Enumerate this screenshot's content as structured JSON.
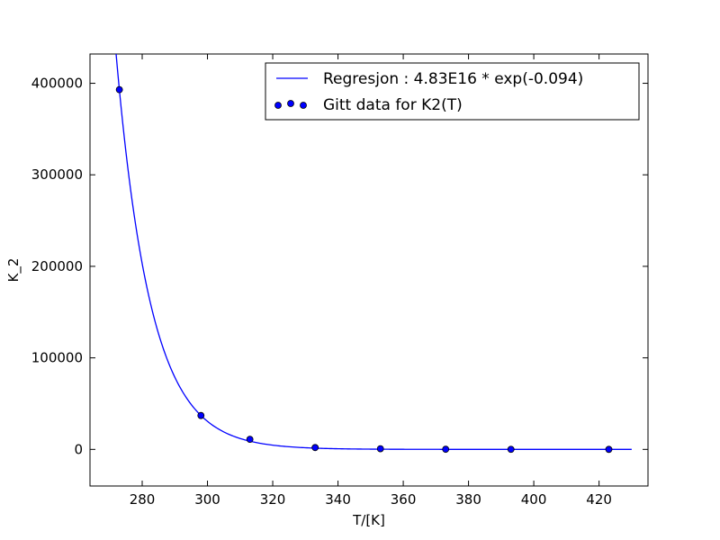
{
  "chart_data": {
    "type": "scatter",
    "xlabel": "T/[K]",
    "ylabel": "K_2",
    "xlim": [
      264,
      435
    ],
    "ylim": [
      -40000,
      432000
    ],
    "xticks": [
      280,
      300,
      320,
      340,
      360,
      380,
      400,
      420
    ],
    "yticks": [
      0,
      100000,
      200000,
      300000,
      400000
    ],
    "xtick_labels": [
      "280",
      "300",
      "320",
      "340",
      "360",
      "380",
      "400",
      "420"
    ],
    "ytick_labels": [
      "0",
      "100000",
      "200000",
      "300000",
      "400000"
    ],
    "grid": false,
    "legend_position": "top-right",
    "series": [
      {
        "name": "Regresjon : 4.83E16 * exp(-0.094)",
        "kind": "line",
        "color": "#0000ff",
        "model": {
          "a": 4.83e+16,
          "b": -0.094
        },
        "x_range": [
          273,
          430
        ]
      },
      {
        "name": "Gitt data for K2(T)",
        "kind": "scatter",
        "color": "#0000ff",
        "points": [
          {
            "x": 273,
            "y": 393000
          },
          {
            "x": 298,
            "y": 37000
          },
          {
            "x": 313,
            "y": 11000
          },
          {
            "x": 333,
            "y": 2000
          },
          {
            "x": 353,
            "y": 700
          },
          {
            "x": 373,
            "y": 150
          },
          {
            "x": 393,
            "y": 40
          },
          {
            "x": 423,
            "y": 10
          }
        ]
      }
    ]
  }
}
